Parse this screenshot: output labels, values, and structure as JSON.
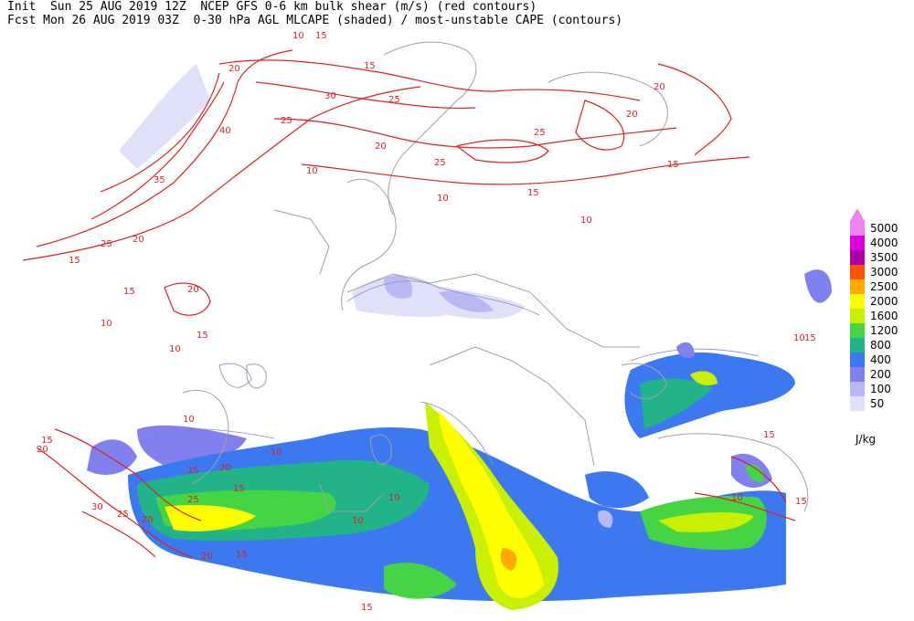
{
  "header": {
    "line1": "Init  Sun 25 AUG 2019 12Z  NCEP GFS 0-6 km bulk shear (m/s) (red contours)",
    "line2": "Fcst Mon 26 AUG 2019 03Z  0-30 hPa AGL MLCAPE (shaded) / most-unstable CAPE (contours)"
  },
  "legend": {
    "units": "J/kg",
    "levels": [
      {
        "label": "5000",
        "color": "#ee82ee"
      },
      {
        "label": "4000",
        "color": "#dd00dd"
      },
      {
        "label": "3500",
        "color": "#aa00aa"
      },
      {
        "label": "3000",
        "color": "#ff5500"
      },
      {
        "label": "2500",
        "color": "#ffaa00"
      },
      {
        "label": "2000",
        "color": "#ffff00"
      },
      {
        "label": "1600",
        "color": "#c8f000"
      },
      {
        "label": "1200",
        "color": "#44d444"
      },
      {
        "label": "800",
        "color": "#22b488"
      },
      {
        "label": "400",
        "color": "#3c78f0"
      },
      {
        "label": "200",
        "color": "#8080ee"
      },
      {
        "label": "100",
        "color": "#b8b8f4"
      },
      {
        "label": "50",
        "color": "#e0e0f8"
      }
    ]
  },
  "shear_contour_labels": [
    "10",
    "15",
    "20",
    "25",
    "30",
    "35",
    "40"
  ],
  "colors": {
    "shear": "#e02020",
    "coast": "#a0a0a0",
    "cape_contour": "#8888cc"
  }
}
